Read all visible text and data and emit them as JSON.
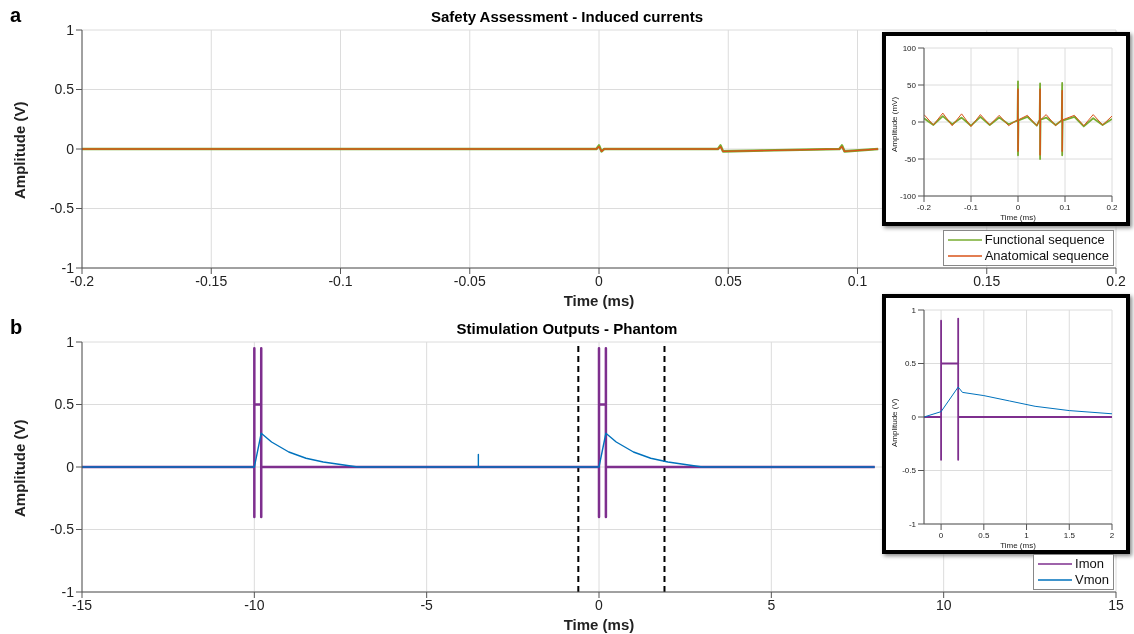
{
  "chart_data": [
    {
      "type": "line",
      "title": "Safety Assessment - Induced currents",
      "annotations": [
        "a"
      ],
      "xlabel": "Time (ms)",
      "ylabel": "Amplitude (V)",
      "xlim": [
        -0.2,
        0.2
      ],
      "xticks": [
        -0.2,
        -0.15,
        -0.1,
        -0.05,
        0,
        0.05,
        0.1,
        0.15,
        0.2
      ],
      "ylim": [
        -1,
        1
      ],
      "yticks": [
        -1,
        -0.5,
        0,
        0.5,
        1
      ],
      "grid": true,
      "legend": "bottom right",
      "marker": "none",
      "line_style": "solid",
      "series": [
        {
          "name": "Functional sequence",
          "color": "#77ac30",
          "x": [
            -0.2,
            -0.15,
            -0.1,
            -0.05,
            -0.001,
            0,
            0.001,
            0.002,
            0.046,
            0.047,
            0.048,
            0.093,
            0.094,
            0.095,
            0.108
          ],
          "values": [
            0,
            0,
            0,
            0,
            0,
            0.03,
            -0.02,
            0,
            0,
            0.03,
            -0.02,
            0,
            0.03,
            -0.02,
            0
          ]
        },
        {
          "name": "Anatomical sequence",
          "color": "#d95319",
          "x": [
            -0.2,
            -0.15,
            -0.1,
            -0.05,
            -0.001,
            0,
            0.001,
            0.002,
            0.046,
            0.047,
            0.048,
            0.093,
            0.094,
            0.095,
            0.108
          ],
          "values": [
            0,
            0,
            0,
            0,
            0,
            0.02,
            -0.02,
            0,
            0,
            0.02,
            -0.02,
            0,
            0.02,
            -0.02,
            0
          ]
        }
      ]
    },
    {
      "type": "line",
      "xlabel": "Time (ms)",
      "ylabel": "Amplitude (mV)",
      "xlim": [
        -0.2,
        0.2
      ],
      "xticks": [
        -0.2,
        -0.1,
        0,
        0.1,
        0.2
      ],
      "ylim": [
        -100,
        100
      ],
      "yticks": [
        -100,
        -50,
        0,
        50,
        100
      ],
      "grid": true,
      "marker": "none",
      "line_style": "solid",
      "series": [
        {
          "color": "#77ac30",
          "x": [
            -0.2,
            -0.18,
            -0.16,
            -0.14,
            -0.12,
            -0.1,
            -0.08,
            -0.06,
            -0.04,
            -0.02,
            -0.001,
            0,
            0,
            0.001,
            0.02,
            0.04,
            0.046,
            0.047,
            0.047,
            0.048,
            0.06,
            0.08,
            0.093,
            0.094,
            0.094,
            0.095,
            0.12,
            0.14,
            0.16,
            0.18,
            0.2
          ],
          "values": [
            5,
            -4,
            8,
            -3,
            6,
            -5,
            7,
            -4,
            6,
            -3,
            2,
            55,
            -45,
            2,
            7,
            -5,
            3,
            52,
            -50,
            3,
            6,
            -4,
            2,
            53,
            -45,
            2,
            7,
            -6,
            5,
            -4,
            4
          ]
        },
        {
          "color": "#d95319",
          "x": [
            -0.2,
            -0.18,
            -0.16,
            -0.14,
            -0.12,
            -0.1,
            -0.08,
            -0.06,
            -0.04,
            -0.02,
            -0.001,
            0,
            0,
            0.001,
            0.02,
            0.04,
            0.046,
            0.047,
            0.047,
            0.048,
            0.06,
            0.08,
            0.093,
            0.094,
            0.094,
            0.095,
            0.12,
            0.14,
            0.16,
            0.18,
            0.2
          ],
          "values": [
            10,
            -4,
            12,
            -5,
            11,
            -6,
            10,
            -4,
            9,
            -5,
            3,
            45,
            -40,
            3,
            9,
            -5,
            3,
            45,
            -45,
            3,
            10,
            -5,
            3,
            43,
            -40,
            3,
            9,
            -5,
            10,
            -4,
            8
          ]
        }
      ]
    },
    {
      "type": "line",
      "title": "Stimulation Outputs - Phantom",
      "annotations": [
        "b"
      ],
      "xlabel": "Time (ms)",
      "ylabel": "Amplitude (V)",
      "xlim": [
        -15,
        15
      ],
      "xticks": [
        -15,
        -10,
        -5,
        0,
        5,
        10,
        15
      ],
      "ylim": [
        -1,
        1
      ],
      "yticks": [
        -1,
        -0.5,
        0,
        0.5,
        1
      ],
      "grid": true,
      "legend": "bottom right",
      "marker": "none",
      "line_style": "solid",
      "ref_lines": [
        {
          "axis": "x",
          "value": -0.6,
          "color": "#000000",
          "line_style": "dashed"
        },
        {
          "axis": "x",
          "value": 1.9,
          "color": "#000000",
          "line_style": "dashed"
        }
      ],
      "series": [
        {
          "name": "Imon",
          "color": "#7e2f8e",
          "x": [
            -15,
            -10,
            -10,
            -10,
            -10,
            -9.8,
            -9.8,
            -9.8,
            -9.8,
            0,
            0,
            0,
            0,
            0.2,
            0.2,
            0.2,
            0.2,
            8
          ],
          "values": [
            0,
            0,
            0.95,
            -0.4,
            0.5,
            0.5,
            0.95,
            -0.4,
            0,
            0,
            0.95,
            -0.4,
            0.5,
            0.5,
            0.95,
            -0.4,
            0,
            0
          ]
        },
        {
          "name": "Vmon",
          "color": "#0072bd",
          "x": [
            -15,
            -10,
            -9.8,
            -9.5,
            -9,
            -8.5,
            -8,
            -7.5,
            -7,
            -3.5,
            -3.5,
            -3.5,
            0,
            0.2,
            0.5,
            1,
            1.5,
            2,
            2.5,
            3,
            8
          ],
          "values": [
            0,
            0,
            0.27,
            0.2,
            0.12,
            0.07,
            0.04,
            0.02,
            0,
            0,
            0.1,
            0,
            0,
            0.27,
            0.2,
            0.12,
            0.07,
            0.04,
            0.02,
            0,
            0
          ]
        }
      ]
    },
    {
      "type": "line",
      "xlabel": "Time (ms)",
      "ylabel": "Amplitude (V)",
      "xlim": [
        -0.2,
        2
      ],
      "xticks": [
        0,
        0.5,
        1,
        1.5,
        2
      ],
      "ylim": [
        -1,
        1
      ],
      "yticks": [
        -1,
        -0.5,
        0,
        0.5,
        1
      ],
      "grid": true,
      "marker": "none",
      "line_style": "solid",
      "series": [
        {
          "color": "#7e2f8e",
          "x": [
            -0.2,
            0,
            0,
            0,
            0,
            0.2,
            0.2,
            0.2,
            0.2,
            2
          ],
          "values": [
            0,
            0,
            0.9,
            -0.4,
            0.5,
            0.5,
            0.92,
            -0.4,
            0,
            0
          ]
        },
        {
          "color": "#0072bd",
          "x": [
            -0.2,
            0,
            0.2,
            0.25,
            0.5,
            0.8,
            1.1,
            1.5,
            2
          ],
          "values": [
            0,
            0.05,
            0.28,
            0.23,
            0.2,
            0.15,
            0.1,
            0.06,
            0.03
          ]
        }
      ]
    }
  ]
}
